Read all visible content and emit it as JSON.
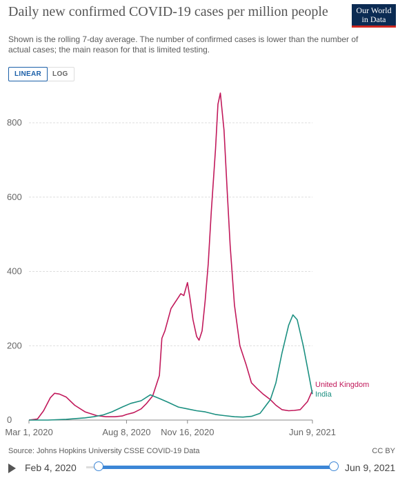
{
  "header": {
    "title": "Daily new confirmed COVID-19 cases per million people",
    "subtitle": "Shown is the rolling 7-day average. The number of confirmed cases is lower than the number of actual cases; the main reason for that is limited testing.",
    "logo_line1": "Our World",
    "logo_line2": "in Data"
  },
  "scale_toggle": {
    "linear": "LINEAR",
    "log": "LOG",
    "selected": "LINEAR"
  },
  "footer": {
    "source": "Source: Johns Hopkins University CSSE COVID-19 Data",
    "license": "CC BY"
  },
  "timeline": {
    "start": "Feb 4, 2020",
    "end": "Jun 9, 2021"
  },
  "colors": {
    "uk": "#c1185a",
    "india": "#1a8f80",
    "grid": "#dddddd",
    "axis": "#888888"
  },
  "chart_data": {
    "type": "line",
    "ylim": [
      0,
      800
    ],
    "y_ticks": [
      0,
      200,
      400,
      600,
      800
    ],
    "x_ticks": [
      "Mar 1, 2020",
      "Aug 8, 2020",
      "Nov 16, 2020",
      "Jun 9, 2021"
    ],
    "x_tick_dates": [
      "2020-03-01",
      "2020-08-08",
      "2020-11-16",
      "2021-06-09"
    ],
    "grid": true,
    "series": [
      {
        "name": "United Kingdom",
        "x": [
          "2020-03-01",
          "2020-03-15",
          "2020-03-25",
          "2020-04-05",
          "2020-04-12",
          "2020-04-20",
          "2020-05-01",
          "2020-05-15",
          "2020-06-01",
          "2020-06-20",
          "2020-07-05",
          "2020-07-20",
          "2020-08-01",
          "2020-08-08",
          "2020-08-20",
          "2020-09-01",
          "2020-09-10",
          "2020-09-20",
          "2020-10-01",
          "2020-10-05",
          "2020-10-10",
          "2020-10-20",
          "2020-10-30",
          "2020-11-05",
          "2020-11-10",
          "2020-11-16",
          "2020-11-20",
          "2020-11-25",
          "2020-12-01",
          "2020-12-05",
          "2020-12-10",
          "2020-12-15",
          "2020-12-20",
          "2020-12-25",
          "2021-01-01",
          "2021-01-05",
          "2021-01-09",
          "2021-01-15",
          "2021-01-20",
          "2021-01-25",
          "2021-02-01",
          "2021-02-10",
          "2021-02-20",
          "2021-03-01",
          "2021-03-10",
          "2021-03-20",
          "2021-04-01",
          "2021-04-10",
          "2021-04-20",
          "2021-05-01",
          "2021-05-10",
          "2021-05-20",
          "2021-06-01",
          "2021-06-09"
        ],
        "y": [
          0,
          3,
          25,
          60,
          72,
          70,
          62,
          40,
          22,
          12,
          9,
          9,
          11,
          15,
          20,
          30,
          45,
          65,
          120,
          220,
          240,
          300,
          325,
          340,
          335,
          370,
          330,
          270,
          225,
          215,
          240,
          320,
          420,
          560,
          730,
          850,
          880,
          780,
          620,
          470,
          310,
          200,
          150,
          100,
          85,
          70,
          55,
          40,
          28,
          25,
          26,
          28,
          50,
          80
        ]
      },
      {
        "name": "India",
        "x": [
          "2020-03-01",
          "2020-04-01",
          "2020-05-01",
          "2020-06-01",
          "2020-06-15",
          "2020-07-01",
          "2020-07-15",
          "2020-08-01",
          "2020-08-15",
          "2020-09-01",
          "2020-09-16",
          "2020-10-01",
          "2020-10-15",
          "2020-11-01",
          "2020-11-16",
          "2020-12-01",
          "2020-12-15",
          "2021-01-01",
          "2021-01-15",
          "2021-02-01",
          "2021-02-15",
          "2021-03-01",
          "2021-03-15",
          "2021-04-01",
          "2021-04-10",
          "2021-04-20",
          "2021-05-01",
          "2021-05-08",
          "2021-05-15",
          "2021-05-25",
          "2021-06-01",
          "2021-06-09"
        ],
        "y": [
          0,
          0,
          2,
          6,
          9,
          14,
          22,
          35,
          45,
          52,
          68,
          58,
          48,
          35,
          30,
          25,
          22,
          15,
          12,
          9,
          8,
          10,
          18,
          55,
          100,
          180,
          255,
          283,
          270,
          200,
          140,
          70
        ]
      }
    ]
  }
}
